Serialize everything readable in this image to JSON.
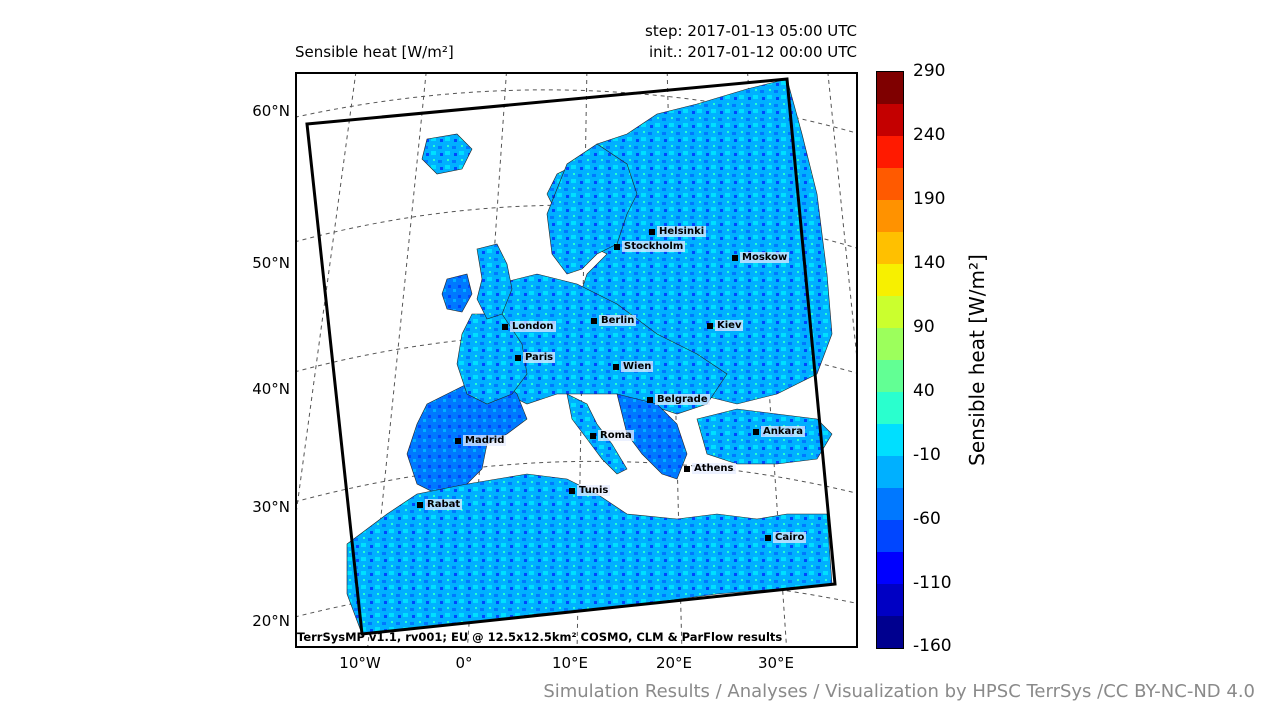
{
  "header": {
    "title": "Sensible heat [W/m²]",
    "step": "step: 2017-01-13 05:00 UTC",
    "init": "init.: 2017-01-12 00:00 UTC"
  },
  "map": {
    "footer": "TerrSysMP v1.1, rv001; EU @ 12.5x12.5km² COSMO, CLM & ParFlow results",
    "lat_labels": [
      "60°N",
      "50°N",
      "40°N",
      "30°N",
      "20°N"
    ],
    "lon_labels": [
      "10°W",
      "0°",
      "10°E",
      "20°E",
      "30°E"
    ],
    "cities": [
      {
        "name": "Helsinki"
      },
      {
        "name": "Stockholm"
      },
      {
        "name": "Moskow"
      },
      {
        "name": "London"
      },
      {
        "name": "Berlin"
      },
      {
        "name": "Kiev"
      },
      {
        "name": "Paris"
      },
      {
        "name": "Wien"
      },
      {
        "name": "Belgrade"
      },
      {
        "name": "Madrid"
      },
      {
        "name": "Roma"
      },
      {
        "name": "Ankara"
      },
      {
        "name": "Athens"
      },
      {
        "name": "Tunis"
      },
      {
        "name": "Rabat"
      },
      {
        "name": "Cairo"
      }
    ]
  },
  "colorbar": {
    "title": "Sensible heat [W/m²]",
    "ticks": [
      "290",
      "240",
      "190",
      "140",
      "90",
      "40",
      "-10",
      "-60",
      "-110",
      "-160"
    ],
    "colors": [
      "#7f0000",
      "#c40000",
      "#ff1a00",
      "#ff5a00",
      "#ff9200",
      "#ffc000",
      "#f7f000",
      "#cbff2e",
      "#9cff5c",
      "#62ff94",
      "#2affce",
      "#00dfff",
      "#00b0ff",
      "#0078ff",
      "#0046ff",
      "#0000ff",
      "#0000c4",
      "#00008f"
    ]
  },
  "credit": "Simulation Results / Analyses / Visualization by HPSC TerrSys /CC BY-NC-ND 4.0"
}
